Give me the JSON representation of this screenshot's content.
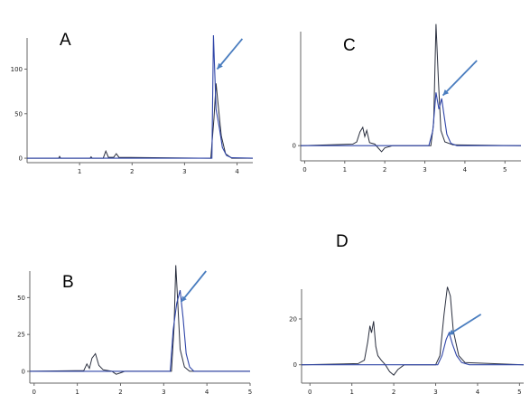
{
  "colors": {
    "trace_black": "#2a2f3e",
    "trace_blue": "#2f45a8",
    "arrow": "#4a7dbf",
    "axis": "#666666"
  },
  "chart_data": [
    {
      "panel": "A",
      "type": "line",
      "x_ticks": [
        "1",
        "2",
        "3",
        "4"
      ],
      "y_ticks": [
        "0",
        "50",
        "100"
      ],
      "xlim": [
        0,
        4.3
      ],
      "ylim": [
        -5,
        135
      ],
      "series": [
        {
          "color": "#2a2f3e",
          "points": [
            [
              0,
              0
            ],
            [
              0.6,
              0
            ],
            [
              0.62,
              2
            ],
            [
              0.64,
              0
            ],
            [
              1.2,
              0
            ],
            [
              1.22,
              1.5
            ],
            [
              1.24,
              0
            ],
            [
              1.45,
              0
            ],
            [
              1.5,
              8
            ],
            [
              1.55,
              1
            ],
            [
              1.65,
              1
            ],
            [
              1.7,
              5
            ],
            [
              1.75,
              1
            ],
            [
              3.5,
              0
            ],
            [
              3.56,
              45
            ],
            [
              3.6,
              84
            ],
            [
              3.64,
              60
            ],
            [
              3.7,
              25
            ],
            [
              3.78,
              5
            ],
            [
              3.9,
              0
            ],
            [
              4.3,
              0
            ]
          ]
        },
        {
          "color": "#2f45a8",
          "points": [
            [
              0,
              0
            ],
            [
              3.52,
              0
            ],
            [
              3.55,
              138
            ],
            [
              3.6,
              55
            ],
            [
              3.66,
              35
            ],
            [
              3.72,
              12
            ],
            [
              3.8,
              3
            ],
            [
              3.9,
              0.5
            ],
            [
              4.3,
              0
            ]
          ]
        }
      ],
      "arrow": {
        "from": [
          4.1,
          134
        ],
        "to": [
          3.62,
          100
        ]
      }
    },
    {
      "panel": "C",
      "type": "line",
      "x_ticks": [
        "0",
        "1",
        "2",
        "3",
        "4",
        "5"
      ],
      "y_ticks": [
        "0"
      ],
      "xlim": [
        -0.1,
        5.4
      ],
      "ylim": [
        -20,
        150
      ],
      "series": [
        {
          "color": "#2a2f3e",
          "points": [
            [
              -0.1,
              0
            ],
            [
              1.2,
              2
            ],
            [
              1.3,
              5
            ],
            [
              1.38,
              18
            ],
            [
              1.45,
              24
            ],
            [
              1.5,
              12
            ],
            [
              1.55,
              20
            ],
            [
              1.62,
              4
            ],
            [
              1.75,
              2
            ],
            [
              1.85,
              -4
            ],
            [
              1.92,
              -8
            ],
            [
              2.0,
              -3
            ],
            [
              2.2,
              0
            ],
            [
              3.15,
              0
            ],
            [
              3.22,
              30
            ],
            [
              3.28,
              160
            ],
            [
              3.34,
              85
            ],
            [
              3.4,
              20
            ],
            [
              3.5,
              5
            ],
            [
              3.7,
              1
            ],
            [
              5.4,
              0
            ]
          ]
        },
        {
          "color": "#2f45a8",
          "points": [
            [
              -0.1,
              0
            ],
            [
              3.1,
              0
            ],
            [
              3.2,
              20
            ],
            [
              3.28,
              70
            ],
            [
              3.35,
              48
            ],
            [
              3.42,
              62
            ],
            [
              3.48,
              40
            ],
            [
              3.55,
              15
            ],
            [
              3.65,
              3
            ],
            [
              3.8,
              0
            ],
            [
              5.4,
              0
            ]
          ]
        }
      ],
      "arrow": {
        "from": [
          4.3,
          112
        ],
        "to": [
          3.45,
          66
        ]
      }
    },
    {
      "panel": "B",
      "type": "line",
      "x_ticks": [
        "0",
        "1",
        "2",
        "3",
        "4",
        "5"
      ],
      "y_ticks": [
        "0",
        "25",
        "50"
      ],
      "xlim": [
        -0.1,
        5.0
      ],
      "ylim": [
        -8,
        68
      ],
      "series": [
        {
          "color": "#2a2f3e",
          "points": [
            [
              -0.1,
              0
            ],
            [
              1.15,
              0.5
            ],
            [
              1.22,
              5
            ],
            [
              1.28,
              2
            ],
            [
              1.34,
              9
            ],
            [
              1.42,
              12
            ],
            [
              1.5,
              4
            ],
            [
              1.6,
              1
            ],
            [
              1.8,
              0
            ],
            [
              1.9,
              -2
            ],
            [
              2.0,
              -1
            ],
            [
              2.1,
              0
            ],
            [
              3.18,
              0
            ],
            [
              3.24,
              30
            ],
            [
              3.28,
              72
            ],
            [
              3.32,
              50
            ],
            [
              3.38,
              15
            ],
            [
              3.48,
              3
            ],
            [
              3.6,
              0
            ],
            [
              5.0,
              0
            ]
          ]
        },
        {
          "color": "#2f45a8",
          "points": [
            [
              -0.1,
              0
            ],
            [
              3.15,
              0
            ],
            [
              3.22,
              28
            ],
            [
              3.3,
              46
            ],
            [
              3.38,
              55
            ],
            [
              3.45,
              36
            ],
            [
              3.52,
              12
            ],
            [
              3.6,
              3
            ],
            [
              3.7,
              0
            ],
            [
              5.0,
              0
            ]
          ]
        }
      ],
      "arrow": {
        "from": [
          3.98,
          68
        ],
        "to": [
          3.4,
          47
        ]
      }
    },
    {
      "panel": "D",
      "type": "line",
      "x_ticks": [
        "0",
        "1",
        "2",
        "3",
        "4",
        "5"
      ],
      "y_ticks": [
        "0",
        "20"
      ],
      "xlim": [
        -0.2,
        5.1
      ],
      "ylim": [
        -8,
        33
      ],
      "series": [
        {
          "color": "#2a2f3e",
          "points": [
            [
              -0.2,
              0
            ],
            [
              1.15,
              0.5
            ],
            [
              1.3,
              2
            ],
            [
              1.38,
              10
            ],
            [
              1.43,
              17
            ],
            [
              1.47,
              14
            ],
            [
              1.52,
              19
            ],
            [
              1.57,
              8
            ],
            [
              1.62,
              4
            ],
            [
              1.7,
              2
            ],
            [
              1.8,
              0
            ],
            [
              1.9,
              -3
            ],
            [
              2.0,
              -4.5
            ],
            [
              2.1,
              -2
            ],
            [
              2.25,
              0
            ],
            [
              3.0,
              0
            ],
            [
              3.1,
              4
            ],
            [
              3.2,
              22
            ],
            [
              3.28,
              34
            ],
            [
              3.35,
              30
            ],
            [
              3.42,
              15
            ],
            [
              3.55,
              4
            ],
            [
              3.7,
              1
            ],
            [
              5.1,
              0
            ]
          ]
        },
        {
          "color": "#2f45a8",
          "points": [
            [
              -0.2,
              0
            ],
            [
              3.05,
              0
            ],
            [
              3.15,
              4
            ],
            [
              3.25,
              11
            ],
            [
              3.32,
              14
            ],
            [
              3.4,
              9
            ],
            [
              3.5,
              4
            ],
            [
              3.62,
              1
            ],
            [
              3.8,
              0
            ],
            [
              5.1,
              0
            ]
          ]
        }
      ],
      "arrow": {
        "from": [
          4.08,
          22
        ],
        "to": [
          3.3,
          13
        ]
      }
    }
  ],
  "panels": {
    "A": {
      "label": "A"
    },
    "B": {
      "label": "B"
    },
    "C": {
      "label": "C"
    },
    "D": {
      "label": "D"
    }
  }
}
